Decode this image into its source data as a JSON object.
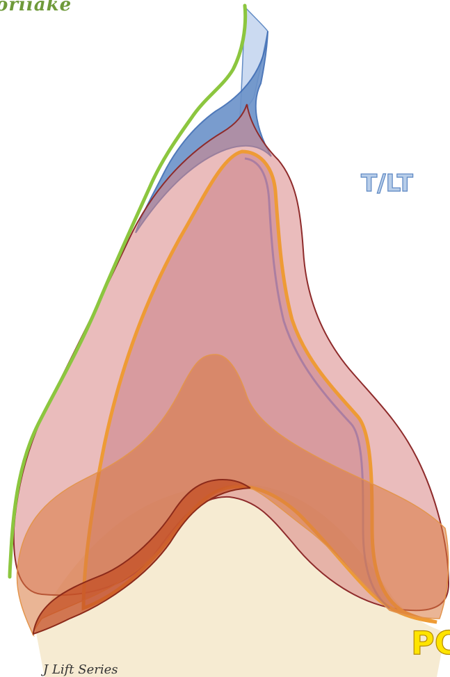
{
  "brand": {
    "text": "oriiake"
  },
  "labels": {
    "top_right": "T/LT",
    "bottom_right": "PC"
  },
  "caption": {
    "text": "J Lift Series"
  },
  "colors": {
    "base": "#f6ebd2",
    "pink_fill": "#d98585",
    "pink_stroke": "#8e2b2b",
    "orange_fill": "#e07a3c",
    "orange_stroke": "#ee9b35",
    "green_line": "#8cc63f",
    "blue_fill": "#6b92c9",
    "blue_stroke": "#3d6bb3",
    "light_blue_fill": "#c9d9f1",
    "label_blue": "#b7cde9",
    "label_yellow": "#ffe400"
  }
}
